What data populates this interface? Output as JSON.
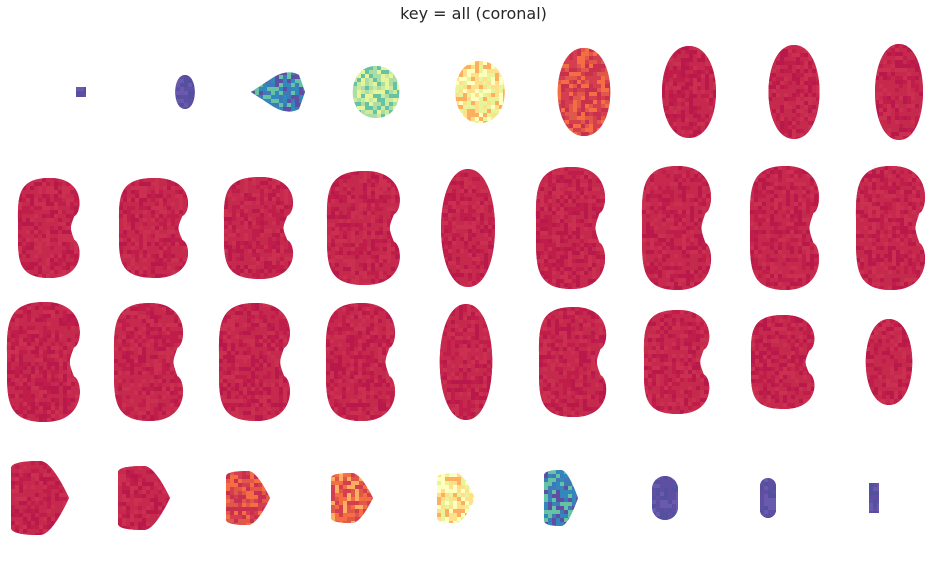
{
  "title": "key = all (coronal)",
  "grid": {
    "rows": 4,
    "cols": 9
  },
  "colormap": "Spectral",
  "palette": {
    "dark_red": "#c01d4a",
    "red": "#d53e4f",
    "orange": "#f46d43",
    "yellow": "#fee08b",
    "pale_yellow": "#ffffbf",
    "green": "#abdda4",
    "teal": "#66c2a5",
    "blue": "#3288bd",
    "purple": "#5e4fa2"
  },
  "slices": [
    {
      "row": 0,
      "col": 0,
      "shape": "tiny",
      "dominant": "purple"
    },
    {
      "row": 0,
      "col": 1,
      "shape": "blob",
      "dominant": "purple"
    },
    {
      "row": 0,
      "col": 2,
      "shape": "arrow",
      "dominant": "blue"
    },
    {
      "row": 0,
      "col": 3,
      "shape": "blob",
      "dominant": "green"
    },
    {
      "row": 0,
      "col": 4,
      "shape": "blob",
      "dominant": "pale_yellow"
    },
    {
      "row": 0,
      "col": 5,
      "shape": "blob",
      "dominant": "red"
    },
    {
      "row": 0,
      "col": 6,
      "shape": "oval",
      "dominant": "dark_red"
    },
    {
      "row": 0,
      "col": 7,
      "shape": "oval",
      "dominant": "dark_red"
    },
    {
      "row": 0,
      "col": 8,
      "shape": "oval",
      "dominant": "dark_red"
    },
    {
      "row": 1,
      "col": 0,
      "shape": "kidney",
      "dominant": "dark_red"
    },
    {
      "row": 1,
      "col": 1,
      "shape": "kidney",
      "dominant": "dark_red"
    },
    {
      "row": 1,
      "col": 2,
      "shape": "kidney",
      "dominant": "dark_red"
    },
    {
      "row": 1,
      "col": 3,
      "shape": "kidney",
      "dominant": "dark_red"
    },
    {
      "row": 1,
      "col": 4,
      "shape": "oval",
      "dominant": "dark_red"
    },
    {
      "row": 1,
      "col": 5,
      "shape": "kidney",
      "dominant": "dark_red"
    },
    {
      "row": 1,
      "col": 6,
      "shape": "kidney",
      "dominant": "dark_red"
    },
    {
      "row": 1,
      "col": 7,
      "shape": "kidney",
      "dominant": "dark_red"
    },
    {
      "row": 1,
      "col": 8,
      "shape": "kidney",
      "dominant": "dark_red"
    },
    {
      "row": 2,
      "col": 0,
      "shape": "kidney",
      "dominant": "dark_red"
    },
    {
      "row": 2,
      "col": 1,
      "shape": "kidney",
      "dominant": "dark_red"
    },
    {
      "row": 2,
      "col": 2,
      "shape": "kidney",
      "dominant": "dark_red"
    },
    {
      "row": 2,
      "col": 3,
      "shape": "kidney",
      "dominant": "dark_red"
    },
    {
      "row": 2,
      "col": 4,
      "shape": "oval",
      "dominant": "dark_red"
    },
    {
      "row": 2,
      "col": 5,
      "shape": "kidney",
      "dominant": "dark_red"
    },
    {
      "row": 2,
      "col": 6,
      "shape": "kidney",
      "dominant": "dark_red"
    },
    {
      "row": 2,
      "col": 7,
      "shape": "kidney",
      "dominant": "dark_red"
    },
    {
      "row": 2,
      "col": 8,
      "shape": "oval",
      "dominant": "dark_red"
    },
    {
      "row": 3,
      "col": 0,
      "shape": "shield",
      "dominant": "dark_red"
    },
    {
      "row": 3,
      "col": 1,
      "shape": "shield",
      "dominant": "dark_red"
    },
    {
      "row": 3,
      "col": 2,
      "shape": "shield",
      "dominant": "red"
    },
    {
      "row": 3,
      "col": 3,
      "shape": "shield",
      "dominant": "orange"
    },
    {
      "row": 3,
      "col": 4,
      "shape": "shield",
      "dominant": "pale_yellow"
    },
    {
      "row": 3,
      "col": 5,
      "shape": "shield",
      "dominant": "blue"
    },
    {
      "row": 3,
      "col": 6,
      "shape": "capsule",
      "dominant": "purple"
    },
    {
      "row": 3,
      "col": 7,
      "shape": "capsule",
      "dominant": "purple"
    },
    {
      "row": 3,
      "col": 8,
      "shape": "tiny_bracket",
      "dominant": "purple"
    }
  ]
}
